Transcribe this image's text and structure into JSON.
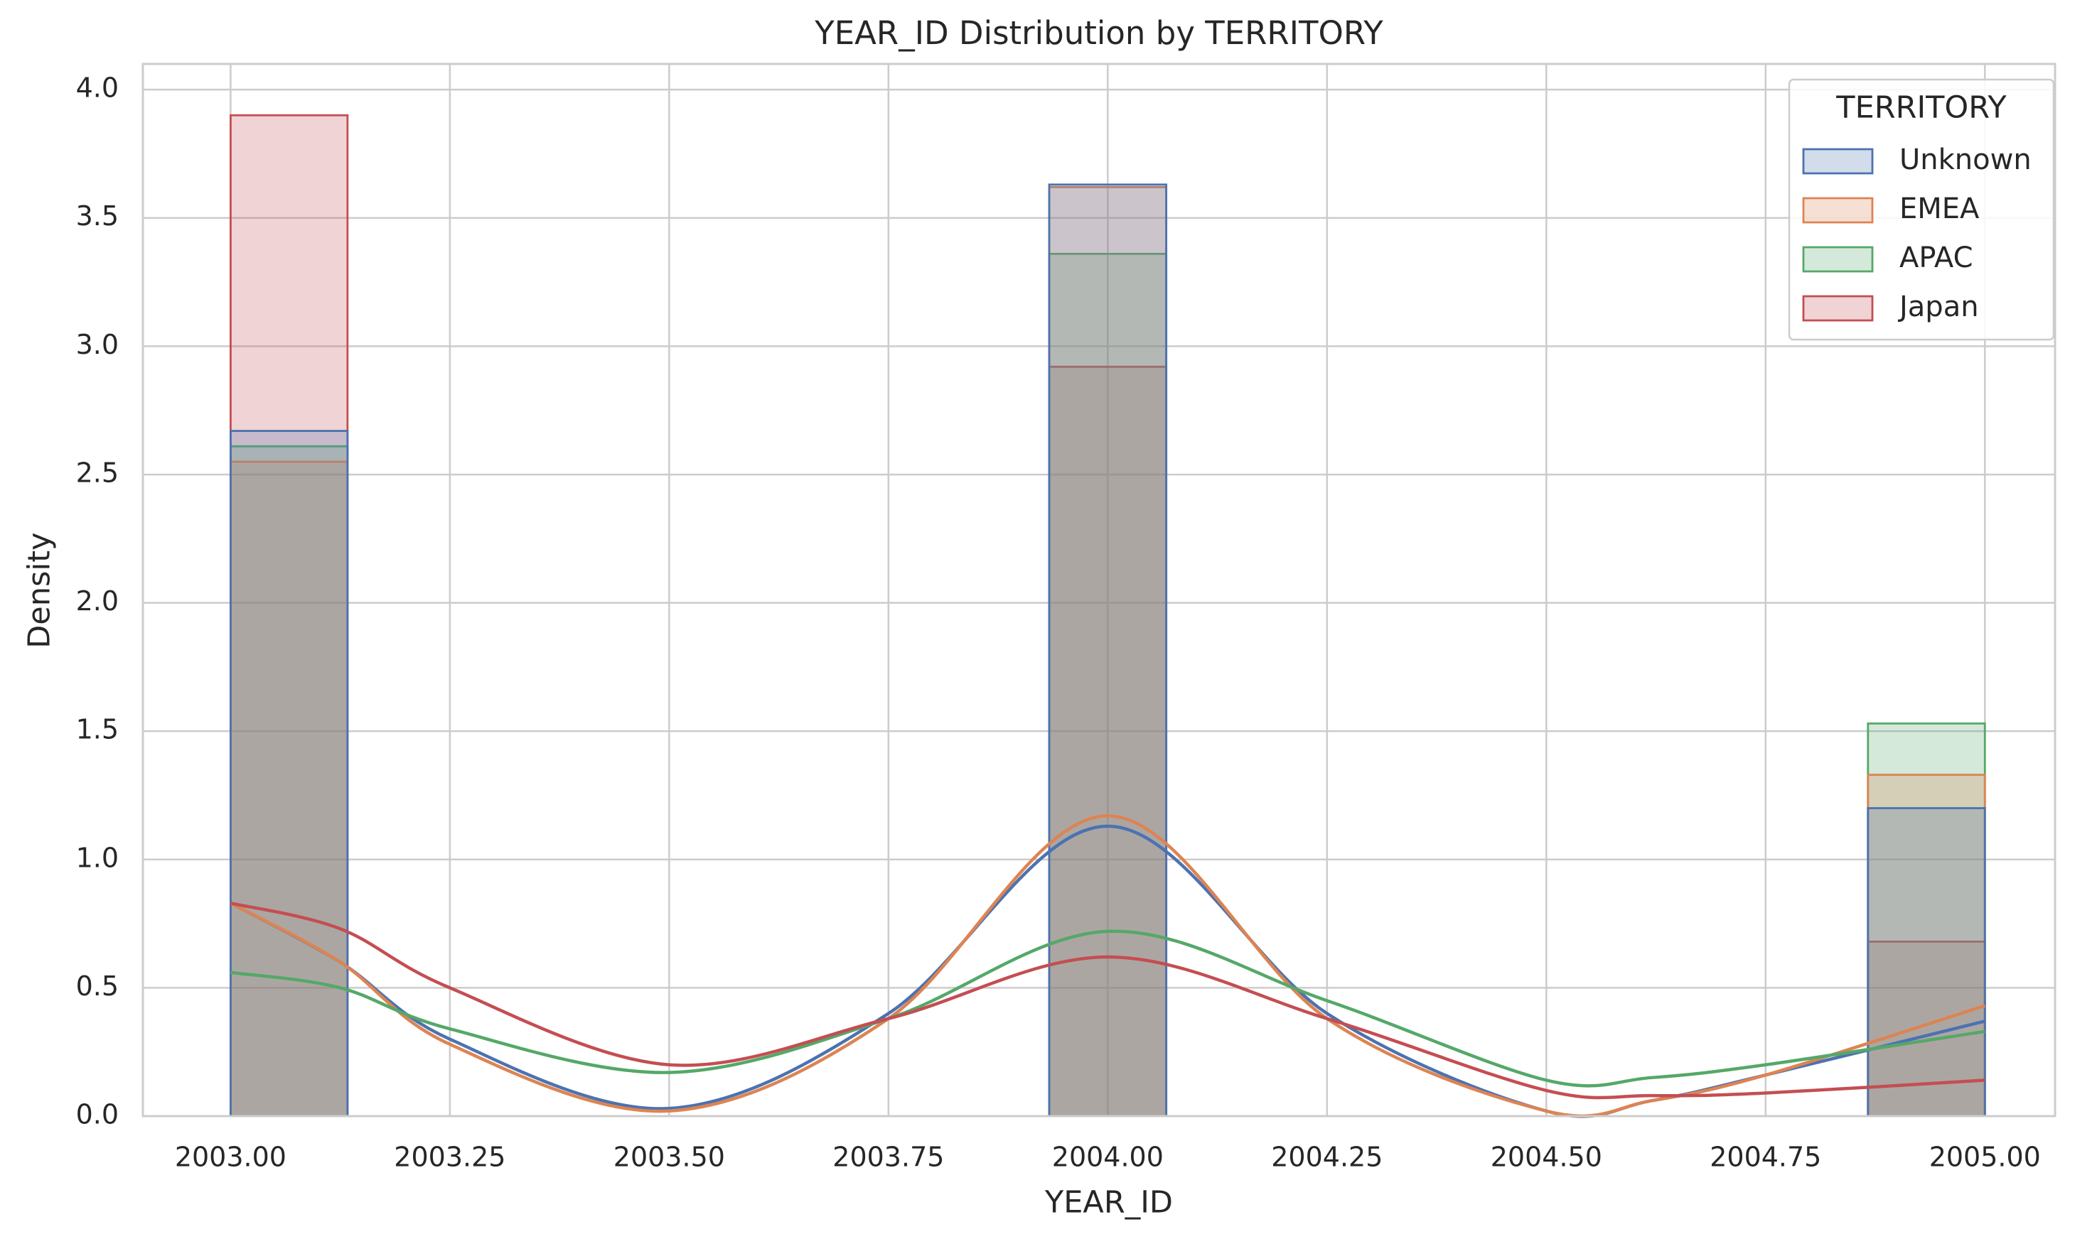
{
  "chart_data": {
    "type": "histogram",
    "title": "YEAR_ID Distribution by TERRITORY",
    "x_label": "YEAR_ID",
    "y_label": "Density",
    "legend_title": "TERRITORY",
    "legend_position": "upper right",
    "grid": true,
    "bins": [
      2003.0,
      2003.1333,
      2003.2667,
      2003.4,
      2003.5333,
      2003.6667,
      2003.8,
      2003.9333,
      2004.0667,
      2004.2,
      2004.3333,
      2004.4667,
      2004.6,
      2004.7333,
      2004.8667,
      2005.0
    ],
    "kde_x": [
      2003.0,
      2003.125,
      2003.25,
      2003.5,
      2003.75,
      2004.0,
      2004.25,
      2004.5,
      2004.62,
      2004.75,
      2005.0
    ],
    "series": [
      {
        "name": "Unknown",
        "color": "#4c72b0",
        "values": [
          2.67,
          0,
          0,
          0,
          0,
          0,
          0,
          3.63,
          0,
          0,
          0,
          0,
          0,
          0,
          1.2
        ],
        "kde_values": [
          0.83,
          0.6,
          0.3,
          0.03,
          0.4,
          1.13,
          0.4,
          0.02,
          0.06,
          0.16,
          0.37
        ]
      },
      {
        "name": "EMEA",
        "color": "#dd8452",
        "values": [
          2.55,
          0,
          0,
          0,
          0,
          0,
          0,
          3.62,
          0,
          0,
          0,
          0,
          0,
          0,
          1.33
        ],
        "kde_values": [
          0.83,
          0.6,
          0.28,
          0.02,
          0.38,
          1.17,
          0.38,
          0.02,
          0.06,
          0.16,
          0.43
        ]
      },
      {
        "name": "APAC",
        "color": "#55a868",
        "values": [
          2.61,
          0,
          0,
          0,
          0,
          0,
          0,
          3.36,
          0,
          0,
          0,
          0,
          0,
          0,
          1.53
        ],
        "kde_values": [
          0.56,
          0.5,
          0.34,
          0.17,
          0.38,
          0.72,
          0.45,
          0.14,
          0.15,
          0.2,
          0.33
        ]
      },
      {
        "name": "Japan",
        "color": "#c44e52",
        "values": [
          3.9,
          0,
          0,
          0,
          0,
          0,
          0,
          2.92,
          0,
          0,
          0,
          0,
          0,
          0,
          0.68
        ],
        "kde_values": [
          0.83,
          0.73,
          0.5,
          0.2,
          0.38,
          0.62,
          0.38,
          0.1,
          0.08,
          0.09,
          0.14
        ]
      }
    ],
    "xlim": [
      2002.9,
      2005.08
    ],
    "ylim": [
      0,
      4.1
    ],
    "xticks": [
      {
        "value": 2003.0,
        "label": "2003.00"
      },
      {
        "value": 2003.25,
        "label": "2003.25"
      },
      {
        "value": 2003.5,
        "label": "2003.50"
      },
      {
        "value": 2003.75,
        "label": "2003.75"
      },
      {
        "value": 2004.0,
        "label": "2004.00"
      },
      {
        "value": 2004.25,
        "label": "2004.25"
      },
      {
        "value": 2004.5,
        "label": "2004.50"
      },
      {
        "value": 2004.75,
        "label": "2004.75"
      },
      {
        "value": 2005.0,
        "label": "2005.00"
      }
    ],
    "yticks": [
      {
        "value": 0,
        "label": "0.0"
      },
      0.5,
      {
        "value": 1,
        "label": "1.0"
      },
      1.5,
      {
        "value": 2,
        "label": "2.0"
      },
      2.5,
      {
        "value": 3,
        "label": "3.0"
      },
      3.5,
      {
        "value": 4,
        "label": "4.0"
      }
    ]
  }
}
